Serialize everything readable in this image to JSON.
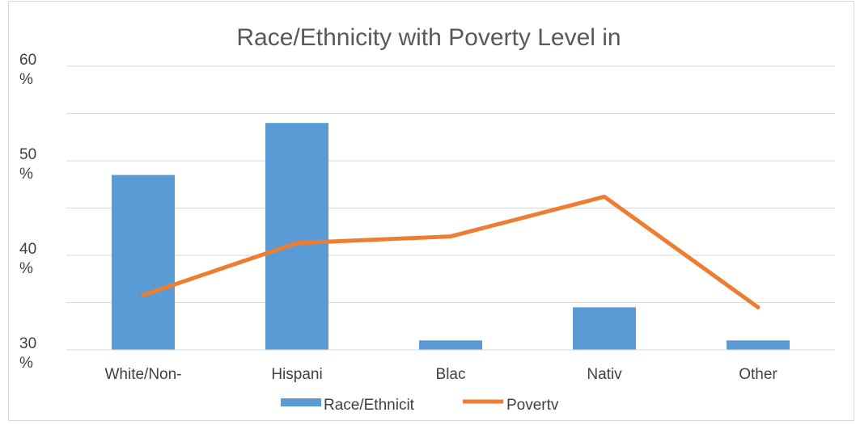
{
  "chart_data": {
    "type": "bar",
    "title": "Race/Ethnicity with Poverty Level in",
    "categories": [
      "White/Non-",
      "Hispani",
      "Blac",
      "Nativ",
      "Other"
    ],
    "series": [
      {
        "name": "Race/Ethnicit",
        "type": "bar",
        "color": "#5b9bd5",
        "values": [
          48.5,
          54.0,
          31.0,
          34.5,
          31.0
        ]
      },
      {
        "name": "Povertv",
        "type": "line",
        "color": "#ed7d31",
        "values": [
          35.8,
          41.3,
          42.0,
          46.2,
          34.5
        ]
      }
    ],
    "y_ticks": [
      {
        "value": 60,
        "lines": [
          "60",
          "%"
        ]
      },
      {
        "value": 50,
        "lines": [
          "50",
          "%"
        ]
      },
      {
        "value": 40,
        "lines": [
          "40",
          "%"
        ]
      },
      {
        "value": 30,
        "lines": [
          "30",
          "%"
        ]
      }
    ],
    "ylim": [
      30,
      60
    ],
    "grid": true,
    "legend_position": "bottom"
  }
}
